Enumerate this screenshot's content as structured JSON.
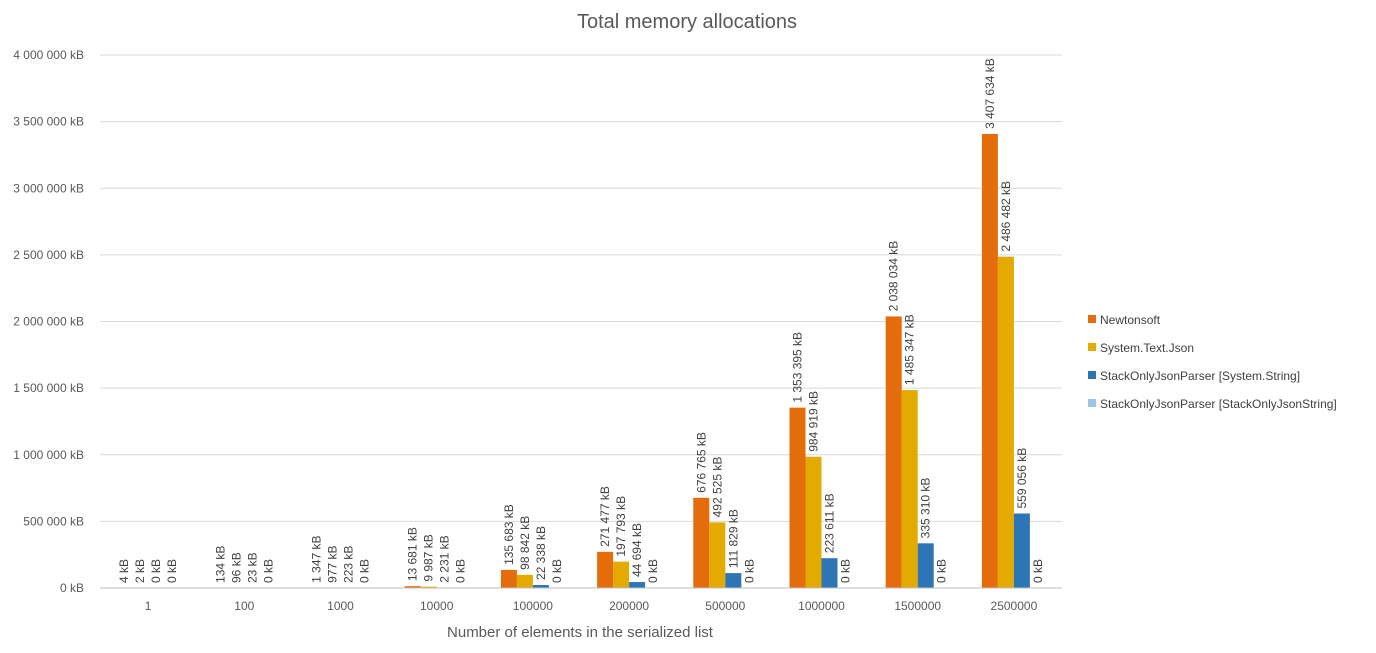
{
  "chart_data": {
    "type": "bar",
    "title": "Total memory allocations",
    "xlabel": "Number of elements in the serialized list",
    "ylabel": "",
    "categories": [
      "1",
      "100",
      "1000",
      "10000",
      "100000",
      "200000",
      "500000",
      "1000000",
      "1500000",
      "2500000"
    ],
    "series": [
      {
        "name": "Newtonsoft",
        "color": "#E46C0A",
        "values": [
          4,
          134,
          1347,
          13681,
          135683,
          271477,
          676765,
          1353395,
          2038034,
          3407634
        ],
        "labels": [
          "4 kB",
          "134 kB",
          "1 347 kB",
          "13 681 kB",
          "135 683 kB",
          "271 477 kB",
          "676 765 kB",
          "1 353 395 kB",
          "2 038 034 kB",
          "3 407 634 kB"
        ]
      },
      {
        "name": "System.Text.Json",
        "color": "#E3AA00",
        "values": [
          2,
          96,
          977,
          9987,
          98842,
          197793,
          492525,
          984919,
          1485347,
          2486482
        ],
        "labels": [
          "2 kB",
          "96 kB",
          "977 kB",
          "9 987 kB",
          "98 842 kB",
          "197 793 kB",
          "492 525 kB",
          "984 919 kB",
          "1 485 347 kB",
          "2 486 482 kB"
        ]
      },
      {
        "name": "StackOnlyJsonParser [System.String]",
        "color": "#2E75B6",
        "values": [
          0,
          23,
          223,
          2231,
          22338,
          44694,
          111829,
          223611,
          335310,
          559056
        ],
        "labels": [
          "0 kB",
          "23 kB",
          "223 kB",
          "2 231 kB",
          "22 338 kB",
          "44 694 kB",
          "111 829 kB",
          "223 611 kB",
          "335 310 kB",
          "559 056 kB"
        ]
      },
      {
        "name": "StackOnlyJsonParser [StackOnlyJsonString]",
        "color": "#9DC3E6",
        "values": [
          0,
          0,
          0,
          0,
          0,
          0,
          0,
          0,
          0,
          0
        ],
        "labels": [
          "0 kB",
          "0 kB",
          "0 kB",
          "0 kB",
          "0 kB",
          "0 kB",
          "0 kB",
          "0 kB",
          "0 kB",
          "0 kB"
        ]
      }
    ],
    "yticks": [
      0,
      500000,
      1000000,
      1500000,
      2000000,
      2500000,
      3000000,
      3500000,
      4000000
    ],
    "ytick_labels": [
      "0 kB",
      "500 000 kB",
      "1 000 000 kB",
      "1 500 000 kB",
      "2 000 000 kB",
      "2 500 000 kB",
      "3 000 000 kB",
      "3 500 000 kB",
      "4 000 000 kB"
    ],
    "ylim": [
      0,
      4000000
    ],
    "grid": true,
    "legend_position": "right",
    "colors": {
      "gridline": "#D9D9D9",
      "axis": "#BFBFBF",
      "text": "#595959"
    }
  }
}
